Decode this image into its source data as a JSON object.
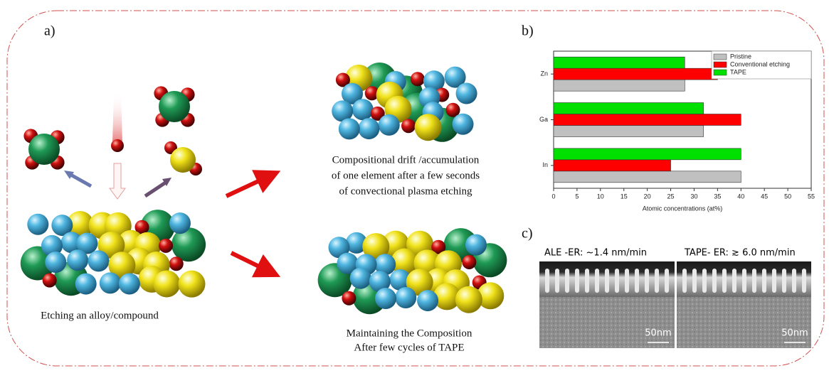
{
  "panels": {
    "a": {
      "label": "a)",
      "caption_input": "Etching an alloy/compound",
      "caption_drift": [
        "Compositional drift /accumulation",
        "of one element  after a few seconds",
        "of convectional plasma etching"
      ],
      "caption_tape": [
        "Maintaining the Composition",
        "After few cycles of TAPE"
      ]
    },
    "b": {
      "label": "b)"
    },
    "c": {
      "label": "c)",
      "left": {
        "title": "ALE -ER: ~1.4 nm/min",
        "scale": "50nm"
      },
      "right": {
        "title": "TAPE- ER: ≳ 6.0 nm/min",
        "scale": "50nm"
      }
    }
  },
  "chart_data": {
    "type": "bar",
    "orientation": "horizontal",
    "categories": [
      "In",
      "Ga",
      "Zn"
    ],
    "series": [
      {
        "name": "Pristine",
        "color": "#c0c0c0",
        "values": [
          40,
          32,
          28
        ]
      },
      {
        "name": "Conventional etching",
        "color": "#ff0000",
        "values": [
          25,
          40,
          35
        ]
      },
      {
        "name": "TAPE",
        "color": "#00e000",
        "values": [
          40,
          32,
          28
        ]
      }
    ],
    "xlabel": "Atomic concentrations (at%)",
    "xlim": [
      0,
      55
    ],
    "xticks": [
      0,
      5,
      10,
      15,
      20,
      25,
      30,
      35,
      40,
      45,
      50,
      55
    ],
    "legend": "upper right"
  }
}
